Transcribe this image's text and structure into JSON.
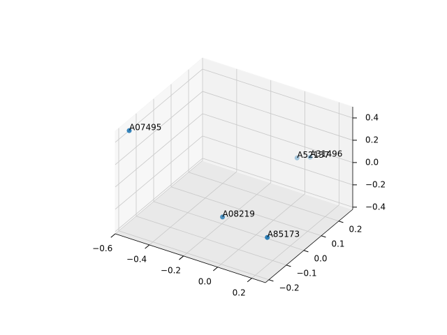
{
  "chart_data": {
    "type": "scatter3d",
    "color": "#1f77b4",
    "grid": true,
    "xlim": [
      -0.6,
      0.28
    ],
    "ylim": [
      -0.22,
      0.28
    ],
    "zlim": [
      -0.42,
      0.5
    ],
    "xticks": [
      {
        "value": -0.6,
        "label": "−0.6"
      },
      {
        "value": -0.4,
        "label": "−0.4"
      },
      {
        "value": -0.2,
        "label": "−0.2"
      },
      {
        "value": 0,
        "label": "0.0"
      },
      {
        "value": 0.2,
        "label": "0.2"
      }
    ],
    "yticks": [
      {
        "value": -0.2,
        "label": "−0.2"
      },
      {
        "value": -0.1,
        "label": "−0.1"
      },
      {
        "value": 0,
        "label": "0.0"
      },
      {
        "value": 0.1,
        "label": "0.1"
      },
      {
        "value": 0.2,
        "label": "0.2"
      }
    ],
    "zticks": [
      {
        "value": -0.4,
        "label": "−0.4"
      },
      {
        "value": -0.2,
        "label": "−0.2"
      },
      {
        "value": 0,
        "label": "0.0"
      },
      {
        "value": 0.2,
        "label": "0.2"
      },
      {
        "value": 0.4,
        "label": "0.4"
      }
    ],
    "labels": [
      "A07495",
      "A08219",
      "A85173",
      "A52137",
      "A31496"
    ],
    "x": [
      -0.6,
      -0.125,
      0.24,
      0.005,
      0.056
    ],
    "y": [
      -0.14,
      -0.07,
      -0.17,
      0.23,
      0.255
    ],
    "z": [
      0.4,
      -0.23,
      -0.1,
      -0.03,
      -0.03
    ]
  }
}
